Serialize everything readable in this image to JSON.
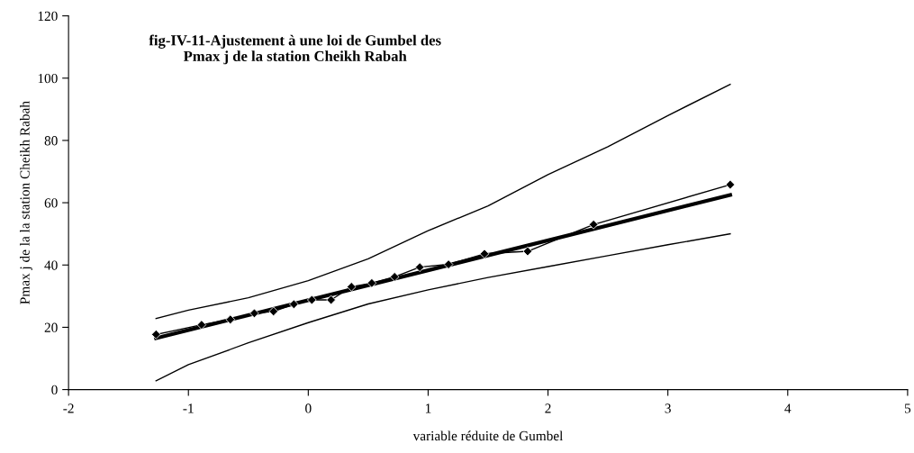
{
  "chart_data": {
    "type": "line",
    "title": "fig-IV-11-Ajustement à une loi de Gumbel des\nPmax j de la station Cheikh Rabah",
    "xlabel": "variable réduite de Gumbel",
    "ylabel": "Pmax j de la la station Cheikh Rabah",
    "xlim": [
      -2,
      5
    ],
    "xticks": [
      -2,
      -1,
      0,
      1,
      2,
      3,
      4,
      5
    ],
    "ylim": [
      0,
      120
    ],
    "yticks": [
      0,
      20,
      40,
      60,
      80,
      100,
      120
    ],
    "grid": false,
    "legend": false,
    "series": [
      {
        "color": "#000000",
        "marker": "diamond",
        "x": [
          -1.27,
          -0.89,
          -0.65,
          -0.45,
          -0.29,
          -0.12,
          0.03,
          0.19,
          0.36,
          0.53,
          0.72,
          0.93,
          1.17,
          1.47,
          1.83,
          2.38,
          3.52
        ],
        "values": [
          17.7,
          20.8,
          22.5,
          24.5,
          25.1,
          27.4,
          28.8,
          28.8,
          33.0,
          34.2,
          36.2,
          39.3,
          40.2,
          43.6,
          44.4,
          53.0,
          65.8
        ]
      },
      {
        "color": "#000000",
        "marker": "none",
        "x": [
          -1.27,
          3.52
        ],
        "values": [
          16.5,
          62.5
        ]
      },
      {
        "color": "#000000",
        "marker": "none",
        "x": [
          -1.27,
          -1,
          -0.5,
          0,
          0.5,
          1,
          1.5,
          2,
          2.5,
          3,
          3.52
        ],
        "values": [
          22.8,
          25.5,
          29.5,
          35,
          42,
          51,
          59,
          69,
          78,
          88,
          98
        ]
      },
      {
        "color": "#000000",
        "marker": "none",
        "x": [
          -1.27,
          -1,
          -0.5,
          0,
          0.5,
          1,
          1.5,
          2,
          2.5,
          3,
          3.52
        ],
        "values": [
          2.8,
          8,
          15,
          21.5,
          27.5,
          32,
          36,
          39.5,
          43,
          46.5,
          50
        ]
      }
    ]
  }
}
